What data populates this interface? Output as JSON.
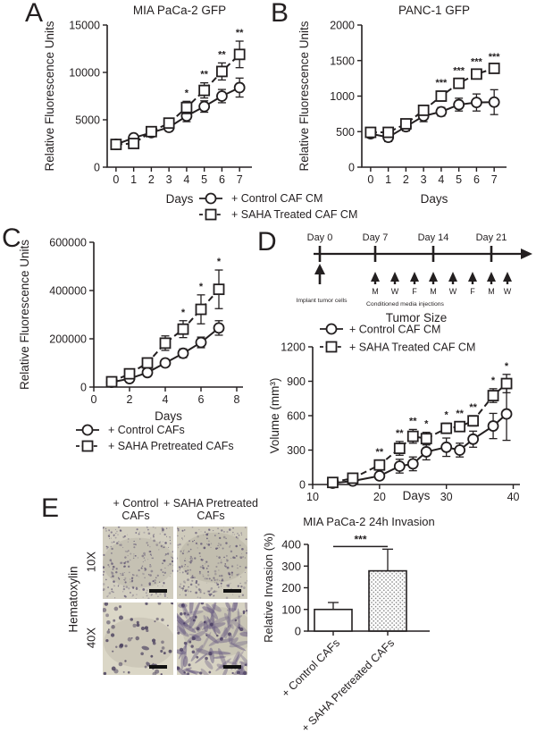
{
  "ink": "#231f20",
  "panel_labels": {
    "a": "A",
    "b": "B",
    "c": "C",
    "d": "D",
    "e": "E"
  },
  "legend_ab": {
    "items": [
      {
        "label": "+ Control CAF CM",
        "marker": "circle",
        "dashed": false
      },
      {
        "label": "+ SAHA Treated CAF CM",
        "marker": "square",
        "dashed": true
      }
    ]
  },
  "legend_c": {
    "items": [
      {
        "label": "+ Control CAFs",
        "marker": "circle",
        "dashed": false
      },
      {
        "label": "+ SAHA Pretreated CAFs",
        "marker": "square",
        "dashed": true
      }
    ]
  },
  "timeline": {
    "day_labels": [
      "Day 0",
      "Day 7",
      "Day 14",
      "Day 21"
    ],
    "implant_label": "Implant tumor cells",
    "injection_days": [
      "M",
      "W",
      "F",
      "M",
      "W",
      "F",
      "M",
      "W"
    ],
    "injections_label": "Conditioned media injections"
  },
  "panel_e": {
    "col_headers": [
      "+ Control CAFs",
      "+ SAHA Pretreated CAFs"
    ],
    "row_group": "Hematoxylin",
    "magnifications": [
      "10X",
      "40X"
    ]
  },
  "chart_data": [
    {
      "id": "panelA",
      "type": "line",
      "title": "MIA PaCa-2 GFP",
      "xlabel": "Days",
      "ylabel": "Relative Fluorescence Units",
      "xlim": [
        -0.5,
        7.7
      ],
      "ylim": [
        0,
        15000
      ],
      "xticks": [
        0,
        1,
        2,
        3,
        4,
        5,
        6,
        7
      ],
      "yticks": [
        0,
        5000,
        10000,
        15000
      ],
      "series": [
        {
          "name": "+ Control CAF CM",
          "marker": "circle",
          "dashed": false,
          "x": [
            0,
            1,
            2,
            3,
            4,
            5,
            6,
            7
          ],
          "y": [
            2400,
            3100,
            3650,
            4200,
            5400,
            6400,
            7500,
            8400
          ],
          "err": [
            250,
            350,
            350,
            400,
            600,
            600,
            700,
            1000
          ]
        },
        {
          "name": "+ SAHA Treated CAF CM",
          "marker": "square",
          "dashed": true,
          "x": [
            0,
            1,
            2,
            3,
            4,
            5,
            6,
            7
          ],
          "y": [
            2400,
            2500,
            3750,
            4650,
            6300,
            8100,
            10100,
            11900
          ],
          "err": [
            250,
            350,
            350,
            450,
            650,
            800,
            900,
            1400
          ]
        }
      ],
      "sig": [
        {
          "x": 4,
          "label": "*"
        },
        {
          "x": 5,
          "label": "**"
        },
        {
          "x": 6,
          "label": "**"
        },
        {
          "x": 7,
          "label": "**"
        }
      ]
    },
    {
      "id": "panelB",
      "type": "line",
      "title": "PANC-1 GFP",
      "xlabel": "Days",
      "ylabel": "Relative Fluorescence Units",
      "xlim": [
        -0.5,
        7.7
      ],
      "ylim": [
        0,
        2000
      ],
      "xticks": [
        0,
        1,
        2,
        3,
        4,
        5,
        6,
        7
      ],
      "yticks": [
        0,
        500,
        1000,
        1500,
        2000
      ],
      "series": [
        {
          "name": "+ Control CAF CM",
          "marker": "circle",
          "dashed": false,
          "x": [
            0,
            1,
            2,
            3,
            4,
            5,
            6,
            7
          ],
          "y": [
            470,
            420,
            570,
            720,
            780,
            880,
            910,
            915
          ],
          "err": [
            40,
            60,
            60,
            80,
            60,
            90,
            120,
            175
          ]
        },
        {
          "name": "+ SAHA Treated CAF CM",
          "marker": "square",
          "dashed": true,
          "x": [
            0,
            1,
            2,
            3,
            4,
            5,
            6,
            7
          ],
          "y": [
            490,
            490,
            610,
            800,
            1000,
            1180,
            1310,
            1390
          ],
          "err": [
            40,
            50,
            60,
            60,
            70,
            60,
            55,
            45
          ]
        }
      ],
      "sig": [
        {
          "x": 4,
          "label": "***"
        },
        {
          "x": 5,
          "label": "***"
        },
        {
          "x": 6,
          "label": "***"
        },
        {
          "x": 7,
          "label": "***"
        }
      ]
    },
    {
      "id": "panelC",
      "type": "line",
      "title": "",
      "xlabel": "Days",
      "ylabel": "Relative Fluorescence Units",
      "xlim": [
        0,
        8.35
      ],
      "ylim": [
        0,
        600000
      ],
      "xticks": [
        0,
        2,
        4,
        6,
        8
      ],
      "yticks": [
        0,
        200000,
        400000,
        600000
      ],
      "series": [
        {
          "name": "+ Control CAFs",
          "marker": "circle",
          "dashed": false,
          "x": [
            1,
            2,
            3,
            4,
            5,
            6,
            7
          ],
          "y": [
            20000,
            35000,
            60000,
            100000,
            140000,
            185000,
            245000
          ],
          "err": [
            8000,
            10000,
            12000,
            15000,
            18000,
            22000,
            30000
          ]
        },
        {
          "name": "+ SAHA Pretreated CAFs",
          "marker": "square",
          "dashed": true,
          "x": [
            1,
            2,
            3,
            4,
            5,
            6,
            7
          ],
          "y": [
            22000,
            55000,
            100000,
            182000,
            240000,
            322000,
            405000
          ],
          "err": [
            8000,
            12000,
            18000,
            30000,
            35000,
            60000,
            80000
          ]
        }
      ],
      "sig": [
        {
          "x": 5,
          "label": "*"
        },
        {
          "x": 6,
          "label": "*"
        },
        {
          "x": 7,
          "label": "*"
        }
      ]
    },
    {
      "id": "panelD",
      "type": "line",
      "title": "Tumor Size",
      "xlabel": "Days",
      "ylabel": "Volume (mm³)",
      "xlim": [
        10,
        41
      ],
      "ylim": [
        0,
        1200
      ],
      "xticks": [
        10,
        20,
        30,
        40
      ],
      "yticks": [
        0,
        300,
        600,
        900,
        1200
      ],
      "legend_position": "top-left-inside",
      "series": [
        {
          "name": "+ Control CAF CM",
          "marker": "circle",
          "dashed": false,
          "x": [
            13,
            16,
            20,
            23,
            25,
            27,
            30,
            32,
            34,
            37,
            39
          ],
          "y": [
            12,
            30,
            75,
            160,
            180,
            285,
            325,
            300,
            395,
            510,
            615
          ],
          "err": [
            8,
            15,
            25,
            60,
            60,
            70,
            80,
            60,
            70,
            110,
            230
          ]
        },
        {
          "name": "+ SAHA Treated CAF CM",
          "marker": "square",
          "dashed": true,
          "x": [
            13,
            16,
            20,
            23,
            25,
            27,
            30,
            32,
            34,
            37,
            39
          ],
          "y": [
            18,
            55,
            170,
            315,
            420,
            400,
            490,
            505,
            555,
            775,
            880
          ],
          "err": [
            10,
            20,
            40,
            60,
            60,
            55,
            45,
            40,
            45,
            60,
            80
          ]
        }
      ],
      "sig": [
        {
          "x": 20,
          "label": "**"
        },
        {
          "x": 23,
          "label": "**"
        },
        {
          "x": 25,
          "label": "**"
        },
        {
          "x": 27,
          "label": "*"
        },
        {
          "x": 30,
          "label": "*"
        },
        {
          "x": 32,
          "label": "**"
        },
        {
          "x": 34,
          "label": "**"
        },
        {
          "x": 37,
          "label": "*"
        },
        {
          "x": 39,
          "label": "*"
        }
      ]
    },
    {
      "id": "invasion",
      "type": "bar",
      "title": "MIA PaCa-2 24h Invasion",
      "ylabel": "Relative Invasion (%)",
      "ylim": [
        0,
        400
      ],
      "yticks": [
        0,
        100,
        200,
        300,
        400
      ],
      "categories": [
        "+ Control CAFs",
        "+ SAHA Pretreated CAFs"
      ],
      "values": [
        100,
        278
      ],
      "errors": [
        32,
        100
      ],
      "fills": [
        "white",
        "stipple"
      ],
      "sig": {
        "label": "***",
        "between": [
          0,
          1
        ],
        "y": 390
      }
    }
  ]
}
